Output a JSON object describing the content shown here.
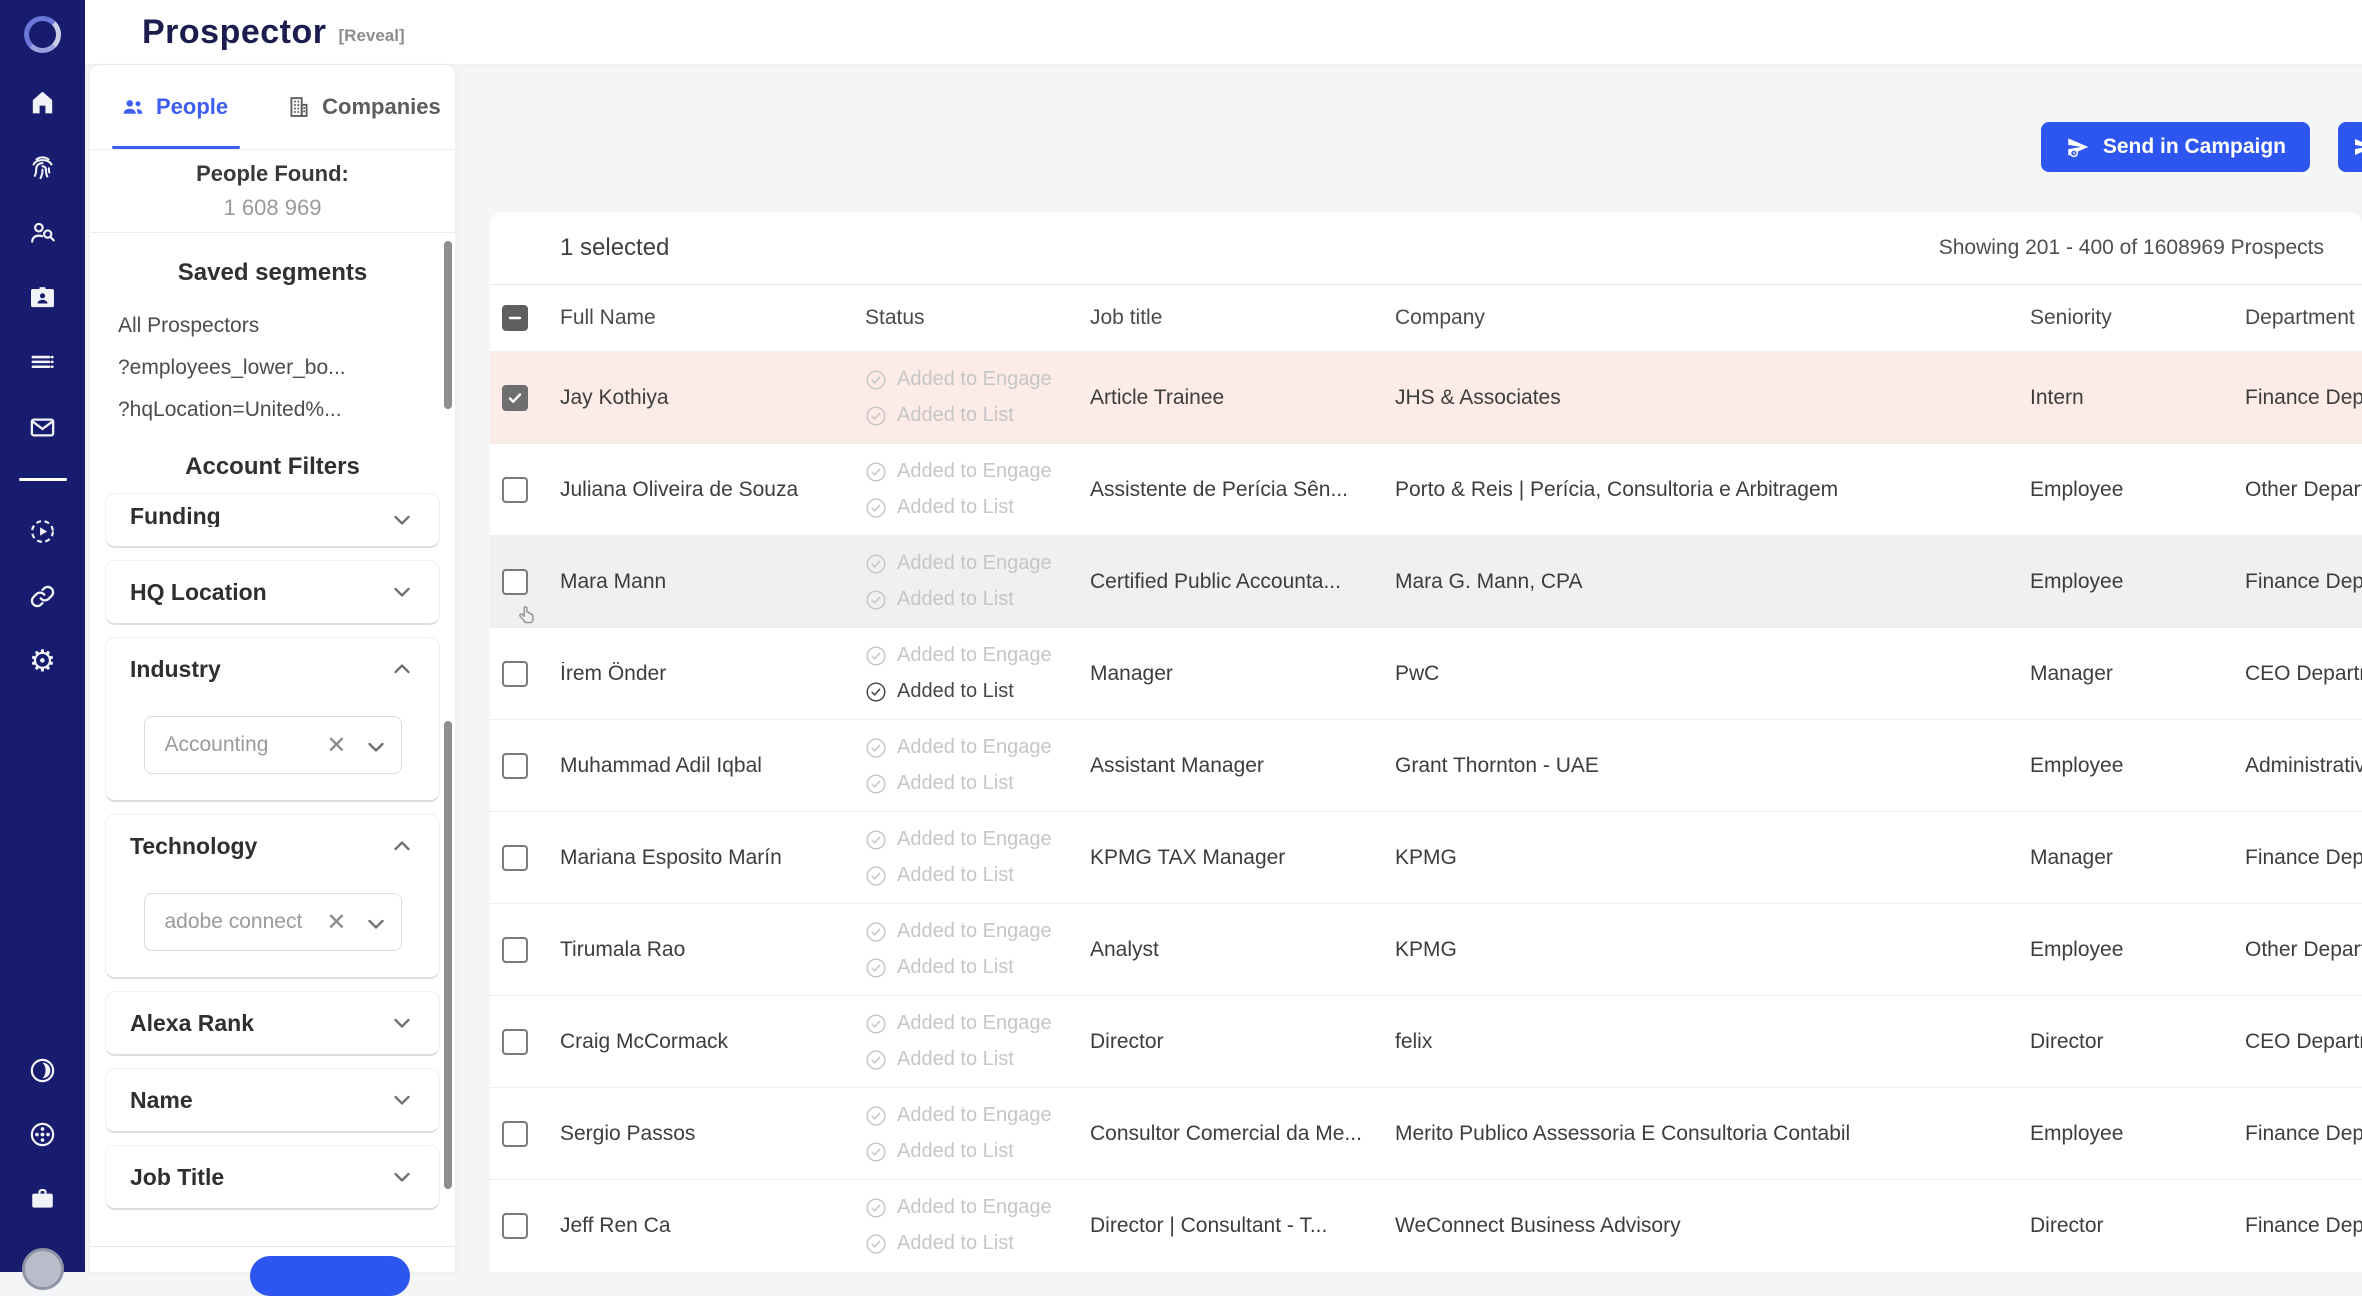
{
  "app": {
    "title": "Prospector",
    "badge": "[Reveal]"
  },
  "rail": {
    "icons": [
      "logo-spinner-icon",
      "home-icon",
      "fingerprint-icon",
      "person-search-icon",
      "contact-card-icon",
      "list-icon",
      "mail-icon",
      "play-circle-icon",
      "link-icon",
      "settings-gear-icon"
    ],
    "bottom_icons": [
      "contrast-icon",
      "wheel-help-icon",
      "briefcase-icon",
      "avatar"
    ]
  },
  "sidebar": {
    "tabs": [
      {
        "label": "People",
        "active": true
      },
      {
        "label": "Companies",
        "active": false
      }
    ],
    "people_found_label": "People Found:",
    "people_found_value": "1 608 969",
    "saved_segments_title": "Saved segments",
    "saved_segments": [
      "All Prospectors",
      "?employees_lower_bo...",
      "?hqLocation=United%..."
    ],
    "account_filters_title": "Account Filters",
    "filters": [
      {
        "label": "Funding",
        "expanded": false,
        "clipped": true
      },
      {
        "label": "HQ Location",
        "expanded": false
      },
      {
        "label": "Industry",
        "expanded": true,
        "value": "Accounting"
      },
      {
        "label": "Technology",
        "expanded": true,
        "value": "adobe connect"
      },
      {
        "label": "Alexa Rank",
        "expanded": false
      },
      {
        "label": "Name",
        "expanded": false
      },
      {
        "label": "Job Title",
        "expanded": false
      }
    ]
  },
  "toolbar": {
    "send_in_campaign_label": "Send in Campaign"
  },
  "table": {
    "selected_text": "1 selected",
    "showing_text": "Showing 201 - 400 of 1608969 Prospects",
    "columns": [
      "Full Name",
      "Status",
      "Job title",
      "Company",
      "Seniority",
      "Department"
    ],
    "status_labels": {
      "engage": "Added to Engage",
      "list": "Added to List"
    },
    "rows": [
      {
        "name": "Jay Kothiya",
        "job": "Article Trainee",
        "company": "JHS & Associates",
        "seniority": "Intern",
        "department": "Finance Department",
        "checked": true,
        "selected": true,
        "hovered": false,
        "list_active": false
      },
      {
        "name": "Juliana Oliveira de Souza",
        "job": "Assistente de Perícia Sên...",
        "company": "Porto & Reis | Perícia, Consultoria e Arbitragem",
        "seniority": "Employee",
        "department": "Other Department",
        "checked": false,
        "selected": false,
        "hovered": false,
        "list_active": false
      },
      {
        "name": "Mara Mann",
        "job": "Certified Public Accounta...",
        "company": "Mara G. Mann, CPA",
        "seniority": "Employee",
        "department": "Finance Department",
        "checked": false,
        "selected": false,
        "hovered": true,
        "list_active": false
      },
      {
        "name": "İrem Önder",
        "job": "Manager",
        "company": "PwC",
        "seniority": "Manager",
        "department": "CEO Department",
        "checked": false,
        "selected": false,
        "hovered": false,
        "list_active": true
      },
      {
        "name": "Muhammad Adil Iqbal",
        "job": "Assistant Manager",
        "company": "Grant Thornton - UAE",
        "seniority": "Employee",
        "department": "Administrative",
        "checked": false,
        "selected": false,
        "hovered": false,
        "list_active": false
      },
      {
        "name": "Mariana Esposito Marín",
        "job": "KPMG TAX Manager",
        "company": "KPMG",
        "seniority": "Manager",
        "department": "Finance Department",
        "checked": false,
        "selected": false,
        "hovered": false,
        "list_active": false
      },
      {
        "name": "Tirumala Rao",
        "job": "Analyst",
        "company": "KPMG",
        "seniority": "Employee",
        "department": "Other Department",
        "checked": false,
        "selected": false,
        "hovered": false,
        "list_active": false
      },
      {
        "name": "Craig McCormack",
        "job": "Director",
        "company": "felix",
        "seniority": "Director",
        "department": "CEO Department",
        "checked": false,
        "selected": false,
        "hovered": false,
        "list_active": false
      },
      {
        "name": "Sergio Passos",
        "job": "Consultor Comercial da Me...",
        "company": "Merito Publico Assessoria E Consultoria Contabil",
        "seniority": "Employee",
        "department": "Finance Department",
        "checked": false,
        "selected": false,
        "hovered": false,
        "list_active": false
      },
      {
        "name": "Jeff Ren Ca",
        "job": "Director | Consultant - T...",
        "company": "WeConnect Business Advisory",
        "seniority": "Director",
        "department": "Finance Department",
        "checked": false,
        "selected": false,
        "hovered": false,
        "list_active": false
      }
    ]
  },
  "colors": {
    "rail_navy": "#171c6e",
    "accent_blue": "#2d56f0",
    "tab_blue": "#3f5df0",
    "selected_row_pink": "#fcebe7"
  }
}
